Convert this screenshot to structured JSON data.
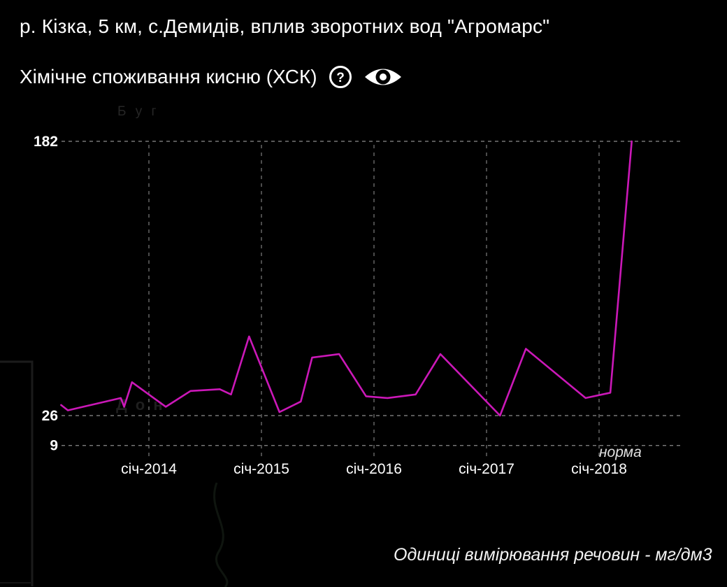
{
  "header": {
    "title": "р. Кізка, 5 км, с.Демидів, вплив зворотних вод \"Агромарс\"",
    "subtitle": "Хімічне споживання кисню (ХСК)",
    "help_glyph": "?",
    "help_icon": "question-circle",
    "visibility_icon": "eye"
  },
  "footer": {
    "units_note": "Одиниці вимірювання речовин - мг/дм3"
  },
  "watermarks": {
    "map_label_top": "Б у г",
    "map_label_mid": "Д о н"
  },
  "colors": {
    "background": "#000000",
    "line": "#cb18b8",
    "grid": "#8c8c8c",
    "tick_text": "#ffffff",
    "norm_text": "#e0e0e0",
    "watermark_text": "#262626",
    "map_frame": "#1b1b1b"
  },
  "chart_data": {
    "type": "line",
    "title": "Хімічне споживання кисню (ХСК)",
    "units": "мг/дм3",
    "grid": "dashed",
    "legend": "none",
    "ylim": [
      9,
      182
    ],
    "y_ticks": [
      182,
      26,
      9
    ],
    "norm_label": "норма",
    "norm_values": [
      26,
      9
    ],
    "x_ticks": [
      {
        "label": "січ-2014",
        "year": 2014
      },
      {
        "label": "січ-2015",
        "year": 2015
      },
      {
        "label": "січ-2016",
        "year": 2016
      },
      {
        "label": "січ-2017",
        "year": 2017
      },
      {
        "label": "січ-2018",
        "year": 2018
      }
    ],
    "series": [
      {
        "name": "ХСК",
        "color": "#cb18b8",
        "points": [
          [
            2013.22,
            32
          ],
          [
            2013.28,
            29
          ],
          [
            2013.75,
            36
          ],
          [
            2013.78,
            31
          ],
          [
            2013.85,
            45
          ],
          [
            2014.15,
            31
          ],
          [
            2014.37,
            40
          ],
          [
            2014.63,
            41
          ],
          [
            2014.73,
            38
          ],
          [
            2014.89,
            71
          ],
          [
            2015.16,
            28
          ],
          [
            2015.35,
            34
          ],
          [
            2015.45,
            59
          ],
          [
            2015.69,
            61
          ],
          [
            2015.93,
            37
          ],
          [
            2016.12,
            36
          ],
          [
            2016.37,
            38
          ],
          [
            2016.59,
            61
          ],
          [
            2017.12,
            26
          ],
          [
            2017.35,
            64
          ],
          [
            2017.88,
            36
          ],
          [
            2018.1,
            39
          ],
          [
            2018.29,
            182
          ]
        ]
      }
    ]
  }
}
